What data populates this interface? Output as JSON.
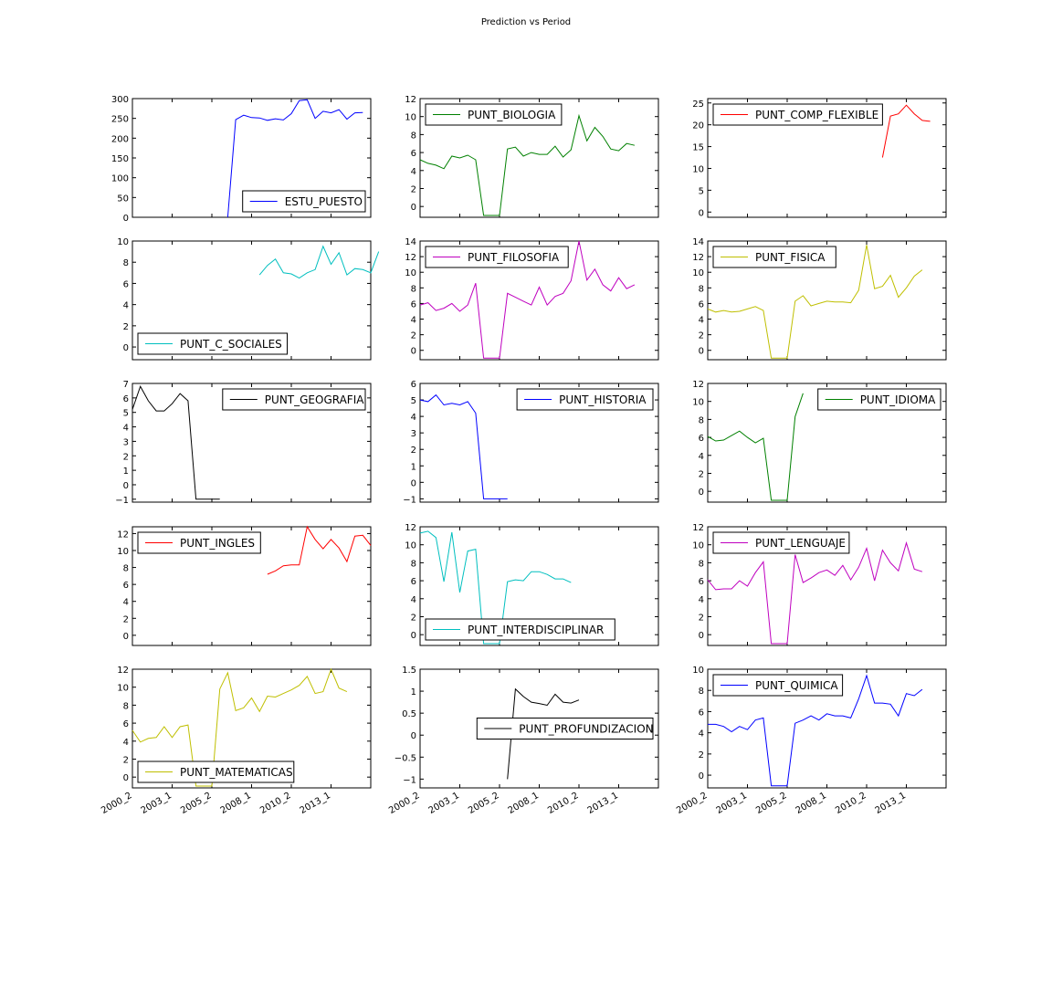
{
  "figure_title": "Prediction vs Period",
  "x_tick_labels": [
    "2000_2",
    "2003_1",
    "2005_2",
    "2008_1",
    "2010_2",
    "2013_1"
  ],
  "chart_data": [
    {
      "type": "line",
      "legend": "ESTU_PUESTO",
      "legend_loc": "lower-right",
      "color": "#0000ff",
      "ylim": [
        0,
        300
      ],
      "yticks": [
        0,
        50,
        100,
        150,
        200,
        250,
        300
      ],
      "y": [
        null,
        null,
        null,
        null,
        null,
        null,
        null,
        null,
        null,
        null,
        null,
        null,
        0,
        247,
        258,
        252,
        251,
        245,
        249,
        246,
        262,
        295,
        297,
        250,
        268,
        264,
        272,
        248,
        264,
        265
      ]
    },
    {
      "type": "line",
      "legend": "PUNT_BIOLOGIA",
      "legend_loc": "upper-left",
      "color": "#008000",
      "ylim": [
        -1.2,
        12
      ],
      "yticks": [
        0,
        2,
        4,
        6,
        8,
        10,
        12
      ],
      "y": [
        5.2,
        4.8,
        4.6,
        4.2,
        5.6,
        5.4,
        5.7,
        5.2,
        -1,
        -1,
        -1,
        6.4,
        6.6,
        5.6,
        6.0,
        5.8,
        5.8,
        6.7,
        5.5,
        6.3,
        10.1,
        7.3,
        8.8,
        7.8,
        6.4,
        6.2,
        7.0,
        6.8
      ]
    },
    {
      "type": "line",
      "legend": "PUNT_COMP_FLEXIBLE",
      "legend_loc": "upper-left",
      "color": "#ff0000",
      "ylim": [
        -1.2,
        26
      ],
      "yticks": [
        0,
        5,
        10,
        15,
        20,
        25
      ],
      "y": [
        null,
        null,
        null,
        null,
        null,
        null,
        null,
        null,
        null,
        null,
        null,
        null,
        null,
        null,
        null,
        null,
        null,
        null,
        null,
        null,
        null,
        null,
        12.5,
        22,
        22.5,
        24.5,
        22.5,
        21,
        20.8
      ]
    },
    {
      "type": "line",
      "legend": "PUNT_C_SOCIALES",
      "legend_loc": "lower-left",
      "color": "#00bfbf",
      "ylim": [
        -1.2,
        10
      ],
      "yticks": [
        0,
        2,
        4,
        6,
        8,
        10
      ],
      "y": [
        null,
        null,
        null,
        null,
        null,
        null,
        null,
        null,
        null,
        null,
        null,
        null,
        null,
        null,
        null,
        null,
        6.8,
        7.7,
        8.3,
        7.0,
        6.9,
        6.5,
        7.0,
        7.3,
        9.5,
        7.8,
        8.9,
        6.8,
        7.4,
        7.3,
        7.0,
        9.0
      ]
    },
    {
      "type": "line",
      "legend": "PUNT_FILOSOFIA",
      "legend_loc": "upper-left",
      "color": "#bf00bf",
      "ylim": [
        -1.2,
        14
      ],
      "yticks": [
        0,
        2,
        4,
        6,
        8,
        10,
        12,
        14
      ],
      "y": [
        5.8,
        6.1,
        5.1,
        5.4,
        6.0,
        5.0,
        5.8,
        8.6,
        -1,
        -1,
        -1,
        7.3,
        6.8,
        6.3,
        5.8,
        8.1,
        5.8,
        6.9,
        7.3,
        8.9,
        14,
        9.0,
        10.4,
        8.4,
        7.6,
        9.3,
        7.9,
        8.4
      ]
    },
    {
      "type": "line",
      "legend": "PUNT_FISICA",
      "legend_loc": "upper-left",
      "color": "#bfbf00",
      "ylim": [
        -1.2,
        14
      ],
      "yticks": [
        0,
        2,
        4,
        6,
        8,
        10,
        12,
        14
      ],
      "y": [
        5.3,
        4.9,
        5.1,
        4.9,
        5.0,
        5.3,
        5.6,
        5.1,
        -1,
        -1,
        -1,
        6.3,
        7.0,
        5.7,
        6.0,
        6.3,
        6.2,
        6.2,
        6.1,
        7.7,
        13.5,
        7.9,
        8.2,
        9.6,
        6.8,
        8.0,
        9.5,
        10.3
      ]
    },
    {
      "type": "line",
      "legend": "PUNT_GEOGRAFIA",
      "legend_loc": "upper-right",
      "color": "#000000",
      "ylim": [
        -1.2,
        7
      ],
      "yticks": [
        -1,
        0,
        1,
        2,
        3,
        4,
        5,
        6,
        7
      ],
      "y": [
        5.2,
        6.8,
        5.8,
        5.1,
        5.1,
        5.6,
        6.3,
        5.8,
        -1,
        -1,
        -1,
        -1
      ]
    },
    {
      "type": "line",
      "legend": "PUNT_HISTORIA",
      "legend_loc": "upper-right",
      "color": "#0000ff",
      "ylim": [
        -1.2,
        6
      ],
      "yticks": [
        -1,
        0,
        1,
        2,
        3,
        4,
        5,
        6
      ],
      "y": [
        5.0,
        4.9,
        5.3,
        4.7,
        4.8,
        4.7,
        4.9,
        4.2,
        -1,
        -1,
        -1,
        -1
      ]
    },
    {
      "type": "line",
      "legend": "PUNT_IDIOMA",
      "legend_loc": "upper-right",
      "color": "#008000",
      "ylim": [
        -1.2,
        12
      ],
      "yticks": [
        0,
        2,
        4,
        6,
        8,
        10,
        12
      ],
      "y": [
        6.1,
        5.6,
        5.7,
        6.2,
        6.7,
        6.0,
        5.4,
        5.9,
        -1,
        -1,
        -1,
        8.3,
        10.9
      ]
    },
    {
      "type": "line",
      "legend": "PUNT_INGLES",
      "legend_loc": "upper-left",
      "color": "#ff0000",
      "ylim": [
        -1.2,
        12.8
      ],
      "yticks": [
        0,
        2,
        4,
        6,
        8,
        10,
        12
      ],
      "y": [
        null,
        null,
        null,
        null,
        null,
        null,
        null,
        null,
        null,
        null,
        null,
        null,
        null,
        null,
        null,
        null,
        null,
        7.2,
        7.6,
        8.2,
        8.3,
        8.3,
        12.8,
        11.3,
        10.2,
        11.3,
        10.3,
        8.7,
        11.7,
        11.8,
        10.6
      ]
    },
    {
      "type": "line",
      "legend": "PUNT_INTERDISCIPLINAR",
      "legend_loc": "lower-left",
      "color": "#00bfbf",
      "ylim": [
        -1.2,
        12
      ],
      "yticks": [
        0,
        2,
        4,
        6,
        8,
        10,
        12
      ],
      "y": [
        11.3,
        11.5,
        10.8,
        5.9,
        11.4,
        4.7,
        9.3,
        9.5,
        -1,
        -1,
        -1,
        5.9,
        6.1,
        6.0,
        7.0,
        7.0,
        6.7,
        6.2,
        6.2,
        5.8
      ]
    },
    {
      "type": "line",
      "legend": "PUNT_LENGUAJE",
      "legend_loc": "upper-left",
      "color": "#bf00bf",
      "ylim": [
        -1.2,
        12
      ],
      "yticks": [
        0,
        2,
        4,
        6,
        8,
        10,
        12
      ],
      "y": [
        6.1,
        5.0,
        5.1,
        5.1,
        6.0,
        5.4,
        6.9,
        8.1,
        -1,
        -1,
        -1,
        8.9,
        5.8,
        6.3,
        6.9,
        7.2,
        6.6,
        7.7,
        6.1,
        7.5,
        9.6,
        6.0,
        9.4,
        8.0,
        7.1,
        10.2,
        7.3,
        7.0
      ]
    },
    {
      "type": "line",
      "legend": "PUNT_MATEMATICAS",
      "legend_loc": "lower-left",
      "color": "#bfbf00",
      "ylim": [
        -1.2,
        12
      ],
      "yticks": [
        0,
        2,
        4,
        6,
        8,
        10,
        12
      ],
      "y": [
        5.2,
        3.9,
        4.3,
        4.4,
        5.6,
        4.4,
        5.6,
        5.8,
        -1,
        -1,
        -1,
        9.8,
        11.6,
        7.4,
        7.7,
        8.8,
        7.3,
        9.0,
        8.9,
        9.3,
        9.7,
        10.2,
        11.2,
        9.3,
        9.5,
        12,
        9.9,
        9.5
      ]
    },
    {
      "type": "line",
      "legend": "PUNT_PROFUNDIZACION",
      "legend_loc": "center-right",
      "color": "#000000",
      "ylim": [
        -1.2,
        1.5
      ],
      "yticks": [
        -1.0,
        -0.5,
        0.0,
        0.5,
        1.0,
        1.5
      ],
      "y": [
        null,
        null,
        null,
        null,
        null,
        null,
        null,
        null,
        null,
        null,
        null,
        -1.0,
        1.05,
        0.88,
        0.75,
        0.72,
        0.68,
        0.93,
        0.75,
        0.73,
        0.8
      ]
    },
    {
      "type": "line",
      "legend": "PUNT_QUIMICA",
      "legend_loc": "upper-left",
      "color": "#0000ff",
      "ylim": [
        -1.2,
        10
      ],
      "yticks": [
        0,
        2,
        4,
        6,
        8,
        10
      ],
      "y": [
        4.8,
        4.8,
        4.6,
        4.1,
        4.6,
        4.3,
        5.2,
        5.4,
        -1,
        -1,
        -1,
        4.9,
        5.2,
        5.6,
        5.2,
        5.8,
        5.6,
        5.6,
        5.4,
        7.2,
        9.4,
        6.8,
        6.8,
        6.7,
        5.6,
        7.7,
        7.5,
        8.1
      ]
    }
  ]
}
